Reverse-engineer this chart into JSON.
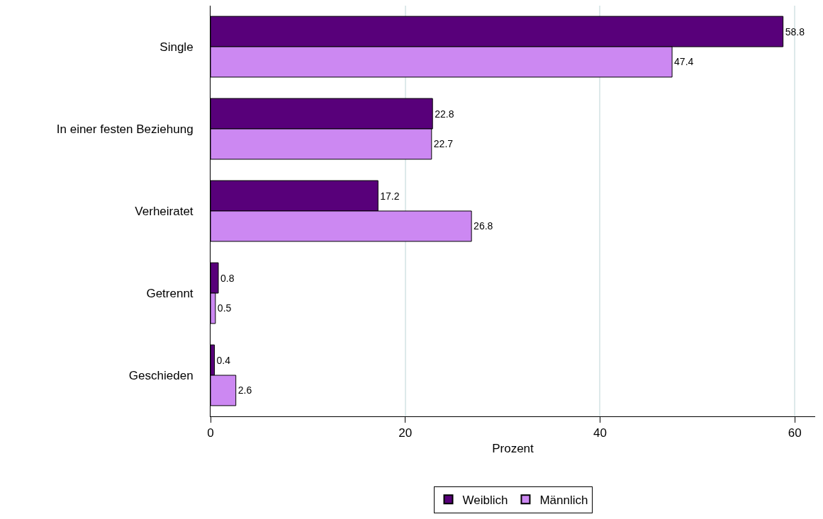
{
  "chart_data": {
    "type": "bar",
    "orientation": "horizontal",
    "categories": [
      "Single",
      "In einer festen Beziehung",
      "Verheiratet",
      "Getrennt",
      "Geschieden"
    ],
    "series": [
      {
        "name": "Weiblich",
        "color": "#58007a",
        "values": [
          58.8,
          22.8,
          17.2,
          0.8,
          0.4
        ]
      },
      {
        "name": "Männlich",
        "color": "#cc88f2",
        "values": [
          47.4,
          22.7,
          26.8,
          0.5,
          2.6
        ]
      }
    ],
    "xlabel": "Prozent",
    "xlim": [
      0,
      62.1
    ],
    "xticks": [
      0,
      20,
      40,
      60
    ],
    "grid": "x",
    "legend": "bottom",
    "data_labels": true
  }
}
